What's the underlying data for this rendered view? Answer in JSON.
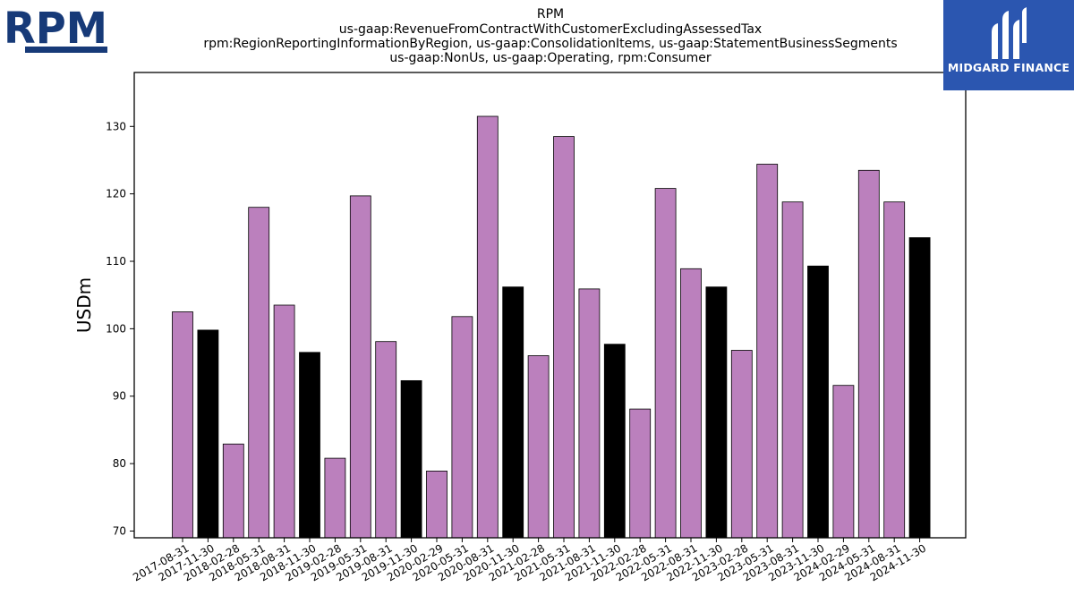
{
  "logos": {
    "left_text": "RPM",
    "right_text": "MIDGARD FINANCE"
  },
  "colors": {
    "bar_primary": "#bb80bd",
    "bar_alt": "#000000",
    "logo_left": "#173a78",
    "logo_right_bg": "#2b56b0"
  },
  "chart_data": {
    "type": "bar",
    "title_lines": [
      "RPM",
      "us-gaap:RevenueFromContractWithCustomerExcludingAssessedTax",
      "rpm:RegionReportingInformationByRegion, us-gaap:ConsolidationItems, us-gaap:StatementBusinessSegments",
      "us-gaap:NonUs, us-gaap:Operating, rpm:Consumer"
    ],
    "xlabel": "",
    "ylabel": "USDm",
    "ylim": [
      69,
      138
    ],
    "yticks": [
      70,
      80,
      90,
      100,
      110,
      120,
      130
    ],
    "grid": false,
    "categories": [
      "2017-08-31",
      "2017-11-30",
      "2018-02-28",
      "2018-05-31",
      "2018-08-31",
      "2018-11-30",
      "2019-02-28",
      "2019-05-31",
      "2019-08-31",
      "2019-11-30",
      "2020-02-29",
      "2020-05-31",
      "2020-08-31",
      "2020-11-30",
      "2021-02-28",
      "2021-05-31",
      "2021-08-31",
      "2021-11-30",
      "2022-02-28",
      "2022-05-31",
      "2022-08-31",
      "2022-11-30",
      "2023-02-28",
      "2023-05-31",
      "2023-08-31",
      "2023-11-30",
      "2024-02-29",
      "2024-05-31",
      "2024-08-31",
      "2024-11-30"
    ],
    "values": [
      102.5,
      99.8,
      82.9,
      118.0,
      103.5,
      96.5,
      80.8,
      119.7,
      98.1,
      92.3,
      78.9,
      101.8,
      131.5,
      106.2,
      96.0,
      128.5,
      105.9,
      97.7,
      88.1,
      120.8,
      108.9,
      106.2,
      96.8,
      124.4,
      118.8,
      109.3,
      91.6,
      123.5,
      118.8,
      113.5
    ],
    "highlight": [
      false,
      true,
      false,
      false,
      false,
      true,
      false,
      false,
      false,
      true,
      false,
      false,
      false,
      true,
      false,
      false,
      false,
      true,
      false,
      false,
      false,
      true,
      false,
      false,
      false,
      true,
      false,
      false,
      false,
      true
    ]
  }
}
